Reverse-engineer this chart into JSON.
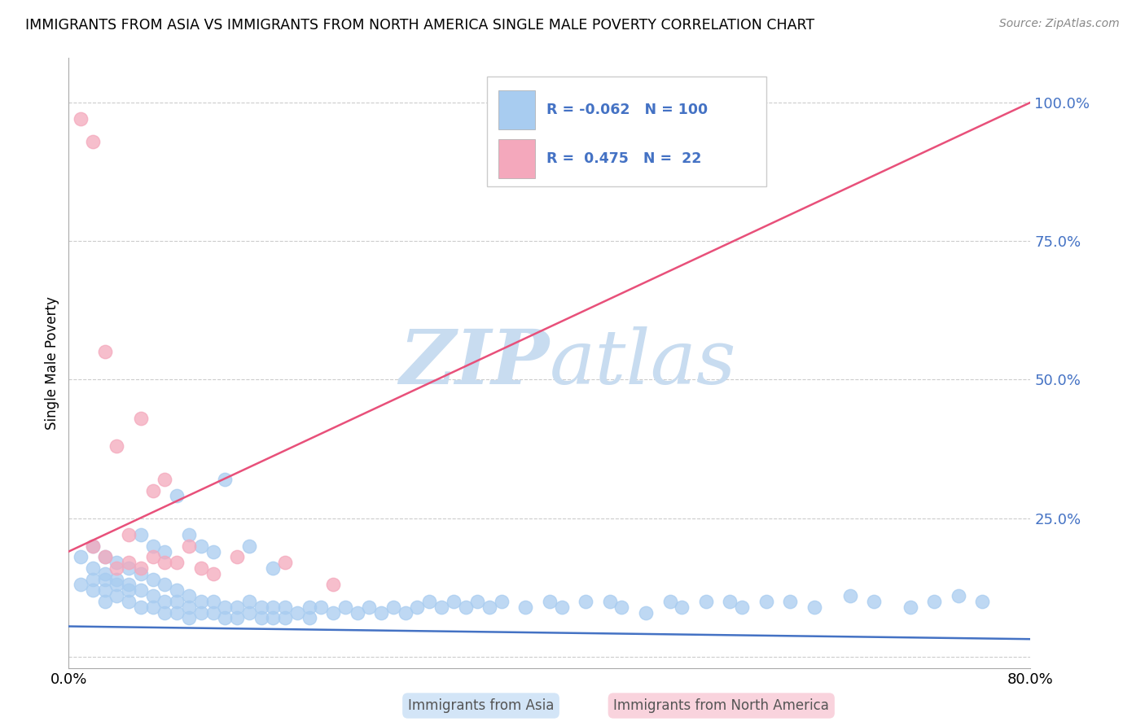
{
  "title": "IMMIGRANTS FROM ASIA VS IMMIGRANTS FROM NORTH AMERICA SINGLE MALE POVERTY CORRELATION CHART",
  "source": "Source: ZipAtlas.com",
  "ylabel": "Single Male Poverty",
  "legend_blue_R": "-0.062",
  "legend_blue_N": "100",
  "legend_pink_R": "0.475",
  "legend_pink_N": "22",
  "legend_label_blue": "Immigrants from Asia",
  "legend_label_pink": "Immigrants from North America",
  "xlim": [
    0.0,
    0.8
  ],
  "ylim": [
    -0.02,
    1.08
  ],
  "ytick_vals": [
    0.0,
    0.25,
    0.5,
    0.75,
    1.0
  ],
  "ytick_labels": [
    "",
    "25.0%",
    "50.0%",
    "75.0%",
    "100.0%"
  ],
  "xtick_vals": [
    0.0,
    0.8
  ],
  "xtick_labels": [
    "0.0%",
    "80.0%"
  ],
  "blue_color": "#A8CCF0",
  "pink_color": "#F4A8BC",
  "blue_line_color": "#4472C4",
  "pink_line_color": "#E8507A",
  "blue_text_color": "#4472C4",
  "watermark_zip": "ZIP",
  "watermark_atlas": "atlas",
  "watermark_color": "#C8DCF0",
  "blue_line_x": [
    0.0,
    0.8
  ],
  "blue_line_y": [
    0.055,
    0.032
  ],
  "pink_line_x": [
    0.0,
    0.8
  ],
  "pink_line_y": [
    0.19,
    1.0
  ],
  "blue_scatter_x": [
    0.01,
    0.02,
    0.02,
    0.02,
    0.03,
    0.03,
    0.03,
    0.03,
    0.04,
    0.04,
    0.04,
    0.05,
    0.05,
    0.05,
    0.06,
    0.06,
    0.06,
    0.07,
    0.07,
    0.07,
    0.08,
    0.08,
    0.08,
    0.09,
    0.09,
    0.09,
    0.1,
    0.1,
    0.1,
    0.11,
    0.11,
    0.12,
    0.12,
    0.13,
    0.13,
    0.14,
    0.14,
    0.15,
    0.15,
    0.16,
    0.16,
    0.17,
    0.17,
    0.18,
    0.18,
    0.19,
    0.2,
    0.2,
    0.21,
    0.22,
    0.23,
    0.24,
    0.25,
    0.26,
    0.27,
    0.28,
    0.29,
    0.3,
    0.31,
    0.32,
    0.33,
    0.34,
    0.35,
    0.36,
    0.38,
    0.4,
    0.41,
    0.43,
    0.45,
    0.46,
    0.48,
    0.5,
    0.51,
    0.53,
    0.55,
    0.56,
    0.58,
    0.6,
    0.62,
    0.65,
    0.67,
    0.7,
    0.72,
    0.74,
    0.76,
    0.01,
    0.02,
    0.03,
    0.04,
    0.05,
    0.06,
    0.07,
    0.08,
    0.09,
    0.1,
    0.11,
    0.12,
    0.13,
    0.15,
    0.17
  ],
  "blue_scatter_y": [
    0.18,
    0.2,
    0.16,
    0.14,
    0.18,
    0.15,
    0.12,
    0.1,
    0.17,
    0.14,
    0.11,
    0.16,
    0.13,
    0.1,
    0.15,
    0.12,
    0.09,
    0.14,
    0.11,
    0.09,
    0.13,
    0.1,
    0.08,
    0.12,
    0.1,
    0.08,
    0.11,
    0.09,
    0.07,
    0.1,
    0.08,
    0.1,
    0.08,
    0.09,
    0.07,
    0.09,
    0.07,
    0.1,
    0.08,
    0.09,
    0.07,
    0.09,
    0.07,
    0.09,
    0.07,
    0.08,
    0.09,
    0.07,
    0.09,
    0.08,
    0.09,
    0.08,
    0.09,
    0.08,
    0.09,
    0.08,
    0.09,
    0.1,
    0.09,
    0.1,
    0.09,
    0.1,
    0.09,
    0.1,
    0.09,
    0.1,
    0.09,
    0.1,
    0.1,
    0.09,
    0.08,
    0.1,
    0.09,
    0.1,
    0.1,
    0.09,
    0.1,
    0.1,
    0.09,
    0.11,
    0.1,
    0.09,
    0.1,
    0.11,
    0.1,
    0.13,
    0.12,
    0.14,
    0.13,
    0.12,
    0.22,
    0.2,
    0.19,
    0.29,
    0.22,
    0.2,
    0.19,
    0.32,
    0.2,
    0.16
  ],
  "pink_scatter_x": [
    0.01,
    0.02,
    0.02,
    0.03,
    0.03,
    0.04,
    0.04,
    0.05,
    0.05,
    0.06,
    0.06,
    0.07,
    0.07,
    0.08,
    0.08,
    0.09,
    0.1,
    0.11,
    0.12,
    0.14,
    0.18,
    0.22
  ],
  "pink_scatter_y": [
    0.97,
    0.93,
    0.2,
    0.55,
    0.18,
    0.38,
    0.16,
    0.22,
    0.17,
    0.43,
    0.16,
    0.3,
    0.18,
    0.17,
    0.32,
    0.17,
    0.2,
    0.16,
    0.15,
    0.18,
    0.17,
    0.13
  ]
}
